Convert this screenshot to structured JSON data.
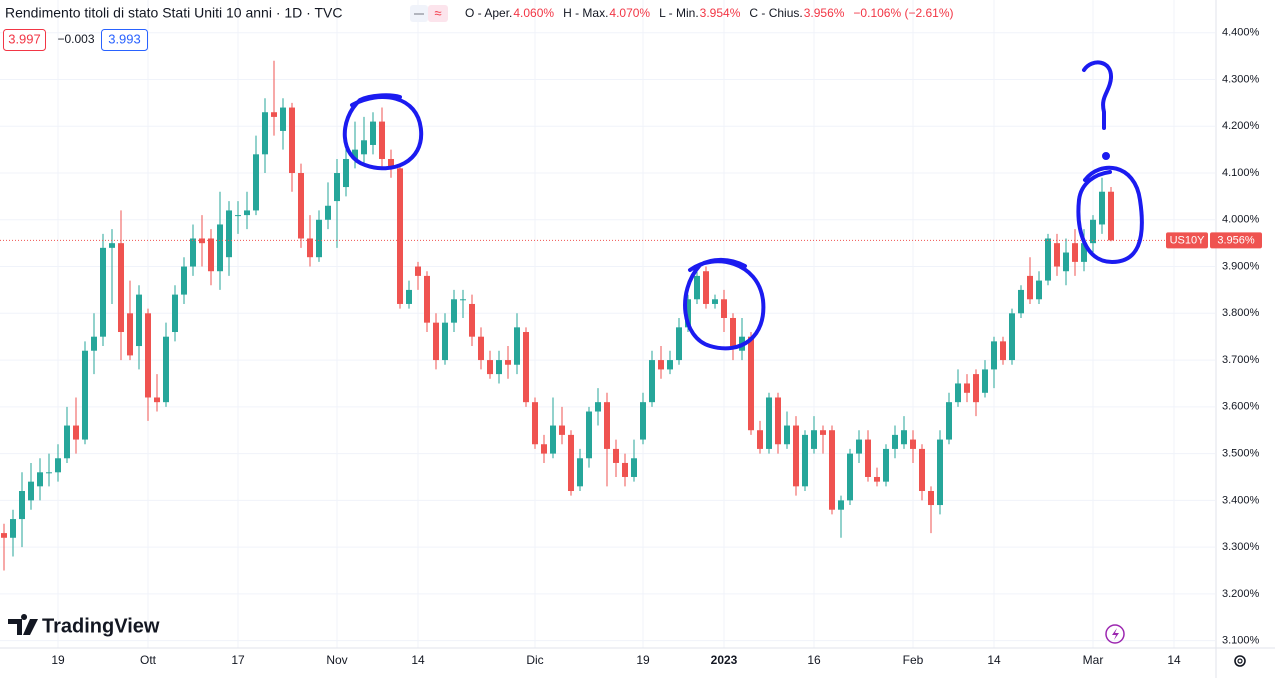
{
  "header": {
    "title": "Rendimento titoli di stato Stati Uniti 10 anni · 1D · TVC",
    "ohlc": [
      {
        "label": "O - Aper.",
        "value": "4.060%"
      },
      {
        "label": "H - Max.",
        "value": "4.070%"
      },
      {
        "label": "L - Min.",
        "value": "3.954%"
      },
      {
        "label": "C - Chius.",
        "value": "3.956%"
      }
    ],
    "change": "−0.106% (−2.61%)",
    "sell": "3.997",
    "spread": "−0.003",
    "buy": "3.993"
  },
  "branding": "TradingView",
  "chart_data": {
    "type": "candlestick",
    "up_color": "#26a69a",
    "down_color": "#ef5350",
    "grid": true,
    "symbol": "US10Y",
    "last_price": {
      "value": 3.956,
      "label": "3.956%"
    },
    "ylim": [
      3.08,
      4.47
    ],
    "yticks": [
      {
        "value": 4.4,
        "label": "4.400%"
      },
      {
        "value": 4.3,
        "label": "4.300%"
      },
      {
        "value": 4.2,
        "label": "4.200%"
      },
      {
        "value": 4.1,
        "label": "4.100%"
      },
      {
        "value": 4.0,
        "label": "4.000%"
      },
      {
        "value": 3.9,
        "label": "3.900%"
      },
      {
        "value": 3.8,
        "label": "3.800%"
      },
      {
        "value": 3.7,
        "label": "3.700%"
      },
      {
        "value": 3.6,
        "label": "3.600%"
      },
      {
        "value": 3.5,
        "label": "3.500%"
      },
      {
        "value": 3.4,
        "label": "3.400%"
      },
      {
        "value": 3.3,
        "label": "3.300%"
      },
      {
        "value": 3.2,
        "label": "3.200%"
      },
      {
        "value": 3.1,
        "label": "3.100%"
      }
    ],
    "categories": [
      null,
      null,
      null,
      null,
      null,
      null,
      "19",
      null,
      null,
      null,
      null,
      null,
      null,
      null,
      null,
      null,
      "Ott",
      null,
      null,
      null,
      null,
      null,
      null,
      null,
      null,
      null,
      "17",
      null,
      null,
      null,
      null,
      null,
      null,
      null,
      null,
      null,
      null,
      "Nov",
      null,
      null,
      null,
      null,
      null,
      null,
      null,
      null,
      "14",
      null,
      null,
      null,
      null,
      null,
      null,
      null,
      null,
      null,
      null,
      null,
      null,
      "Dic",
      null,
      null,
      null,
      null,
      null,
      null,
      null,
      null,
      null,
      null,
      null,
      "19",
      null,
      null,
      null,
      null,
      null,
      null,
      null,
      null,
      "2023",
      null,
      null,
      null,
      null,
      null,
      null,
      null,
      null,
      null,
      "16",
      null,
      null,
      null,
      null,
      null,
      null,
      null,
      null,
      null,
      null,
      "Feb",
      null,
      null,
      null,
      null,
      null,
      null,
      null,
      null,
      "14",
      null,
      null,
      null,
      null,
      null,
      null,
      null,
      null,
      null,
      null,
      "Mar",
      null,
      null,
      null,
      null,
      null,
      null,
      null,
      null,
      "14"
    ],
    "open": [
      3.33,
      3.32,
      3.36,
      3.4,
      3.43,
      3.46,
      3.46,
      3.49,
      3.56,
      3.53,
      3.72,
      3.75,
      3.94,
      3.95,
      3.8,
      3.73,
      3.8,
      3.62,
      3.61,
      3.76,
      3.84,
      3.9,
      3.96,
      3.96,
      3.89,
      3.92,
      4.01,
      4.01,
      4.02,
      4.14,
      4.23,
      4.19,
      4.24,
      4.1,
      3.96,
      3.92,
      4.0,
      4.04,
      4.07,
      4.13,
      4.14,
      4.16,
      4.21,
      4.13,
      4.11,
      3.82,
      3.9,
      3.88,
      3.78,
      3.7,
      3.78,
      3.83,
      3.82,
      3.75,
      3.7,
      3.67,
      3.7,
      3.69,
      3.76,
      3.61,
      3.52,
      3.5,
      3.56,
      3.54,
      3.43,
      3.49,
      3.59,
      3.61,
      3.51,
      3.48,
      3.45,
      3.53,
      3.61,
      3.7,
      3.68,
      3.7,
      3.77,
      3.83,
      3.89,
      3.82,
      3.83,
      3.79,
      3.72,
      3.75,
      3.55,
      3.51,
      3.62,
      3.52,
      3.56,
      3.43,
      3.51,
      3.55,
      3.55,
      3.38,
      3.4,
      3.5,
      3.53,
      3.45,
      3.44,
      3.51,
      3.52,
      3.53,
      3.51,
      3.42,
      3.39,
      3.53,
      3.61,
      3.65,
      3.67,
      3.63,
      3.68,
      3.74,
      3.7,
      3.8,
      3.88,
      3.83,
      3.87,
      3.95,
      3.89,
      3.95,
      3.91,
      3.95,
      3.99,
      4.06,
      null,
      null,
      null,
      null,
      null,
      null,
      null
    ],
    "high": [
      3.35,
      3.38,
      3.46,
      3.48,
      3.49,
      3.5,
      3.52,
      3.6,
      3.62,
      3.74,
      3.8,
      3.97,
      3.98,
      4.02,
      3.87,
      3.86,
      3.81,
      3.67,
      3.78,
      3.86,
      3.92,
      3.99,
      4.01,
      3.98,
      4.06,
      4.04,
      4.04,
      4.06,
      4.18,
      4.26,
      4.34,
      4.26,
      4.25,
      4.12,
      4.01,
      4.02,
      4.08,
      4.13,
      4.19,
      4.21,
      4.22,
      4.23,
      4.24,
      4.15,
      4.12,
      3.87,
      3.91,
      3.89,
      3.8,
      3.8,
      3.85,
      3.85,
      3.84,
      3.77,
      3.72,
      3.72,
      3.73,
      3.8,
      3.77,
      3.62,
      3.54,
      3.62,
      3.6,
      3.55,
      3.51,
      3.6,
      3.64,
      3.63,
      3.53,
      3.5,
      3.53,
      3.63,
      3.72,
      3.73,
      3.72,
      3.79,
      3.84,
      3.9,
      3.9,
      3.84,
      3.85,
      3.8,
      3.79,
      3.76,
      3.57,
      3.63,
      3.63,
      3.59,
      3.58,
      3.55,
      3.58,
      3.56,
      3.56,
      3.41,
      3.51,
      3.55,
      3.55,
      3.47,
      3.52,
      3.56,
      3.58,
      3.55,
      3.52,
      3.43,
      3.55,
      3.63,
      3.68,
      3.67,
      3.68,
      3.7,
      3.75,
      3.75,
      3.81,
      3.86,
      3.92,
      3.89,
      3.97,
      3.97,
      3.96,
      3.98,
      3.98,
      4.01,
      4.09,
      4.07,
      null,
      null,
      null,
      null,
      null,
      null,
      null
    ],
    "low": [
      3.25,
      3.28,
      3.3,
      3.38,
      3.4,
      3.43,
      3.44,
      3.48,
      3.5,
      3.52,
      3.67,
      3.73,
      3.82,
      3.7,
      3.7,
      3.68,
      3.57,
      3.59,
      3.6,
      3.74,
      3.82,
      3.88,
      3.9,
      3.86,
      3.85,
      3.88,
      3.97,
      3.98,
      4.01,
      4.1,
      4.18,
      4.15,
      4.06,
      3.94,
      3.9,
      3.91,
      3.98,
      3.94,
      4.05,
      4.11,
      4.12,
      4.14,
      4.11,
      4.09,
      3.81,
      3.81,
      3.85,
      3.76,
      3.68,
      3.69,
      3.76,
      3.79,
      3.73,
      3.68,
      3.66,
      3.65,
      3.66,
      3.67,
      3.6,
      3.51,
      3.48,
      3.49,
      3.52,
      3.41,
      3.42,
      3.47,
      3.56,
      3.43,
      3.45,
      3.43,
      3.44,
      3.52,
      3.6,
      3.66,
      3.67,
      3.69,
      3.76,
      3.82,
      3.81,
      3.81,
      3.76,
      3.7,
      3.7,
      3.54,
      3.5,
      3.5,
      3.5,
      3.51,
      3.41,
      3.42,
      3.5,
      3.5,
      3.37,
      3.32,
      3.39,
      3.48,
      3.44,
      3.43,
      3.43,
      3.49,
      3.51,
      3.48,
      3.4,
      3.33,
      3.37,
      3.52,
      3.6,
      3.61,
      3.58,
      3.62,
      3.64,
      3.69,
      3.69,
      3.79,
      3.82,
      3.82,
      3.86,
      3.88,
      3.86,
      3.88,
      3.89,
      3.93,
      3.97,
      3.954,
      null,
      null,
      null,
      null,
      null,
      null,
      null
    ],
    "close": [
      3.32,
      3.36,
      3.42,
      3.44,
      3.46,
      3.46,
      3.49,
      3.56,
      3.53,
      3.72,
      3.75,
      3.94,
      3.95,
      3.76,
      3.71,
      3.84,
      3.62,
      3.61,
      3.75,
      3.84,
      3.9,
      3.96,
      3.95,
      3.89,
      3.99,
      4.02,
      4.01,
      4.02,
      4.14,
      4.23,
      4.22,
      4.24,
      4.1,
      3.96,
      3.92,
      4.0,
      4.03,
      4.1,
      4.13,
      4.15,
      4.17,
      4.21,
      4.13,
      4.11,
      3.82,
      3.85,
      3.88,
      3.78,
      3.7,
      3.78,
      3.83,
      3.83,
      3.75,
      3.7,
      3.67,
      3.7,
      3.69,
      3.77,
      3.61,
      3.52,
      3.5,
      3.56,
      3.54,
      3.42,
      3.49,
      3.59,
      3.61,
      3.51,
      3.48,
      3.45,
      3.49,
      3.61,
      3.7,
      3.68,
      3.7,
      3.77,
      3.83,
      3.88,
      3.82,
      3.83,
      3.79,
      3.73,
      3.75,
      3.55,
      3.51,
      3.62,
      3.52,
      3.56,
      3.43,
      3.54,
      3.55,
      3.54,
      3.38,
      3.4,
      3.5,
      3.53,
      3.45,
      3.44,
      3.51,
      3.54,
      3.55,
      3.51,
      3.42,
      3.39,
      3.53,
      3.61,
      3.65,
      3.63,
      3.61,
      3.68,
      3.74,
      3.7,
      3.8,
      3.85,
      3.83,
      3.87,
      3.96,
      3.9,
      3.93,
      3.91,
      3.95,
      4.0,
      4.06,
      3.956,
      null,
      null,
      null,
      null,
      null,
      null,
      null
    ]
  }
}
